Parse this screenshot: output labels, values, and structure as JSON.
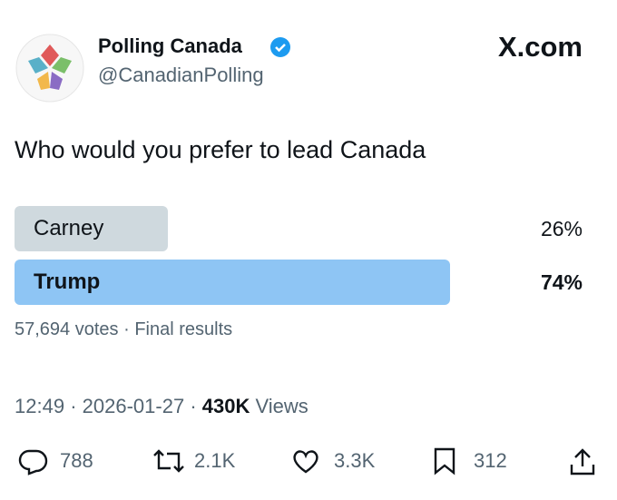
{
  "account": {
    "name": "Polling Canada",
    "handle": "@CanadianPolling"
  },
  "brand": "X.com",
  "post": {
    "text": "Who would you prefer to lead Canada"
  },
  "poll": {
    "options": [
      {
        "label": "Carney",
        "percent": 26,
        "percent_label": "26%"
      },
      {
        "label": "Trump",
        "percent": 74,
        "percent_label": "74%"
      }
    ],
    "votes": "57,694 votes",
    "status": "Final results"
  },
  "separator": "·",
  "meta": {
    "time": "12:49",
    "date": "2026-01-27",
    "views_count": "430K",
    "views_label": "Views"
  },
  "actions": {
    "replies": "788",
    "reposts": "2.1K",
    "likes": "3.3K",
    "bookmarks": "312"
  }
}
